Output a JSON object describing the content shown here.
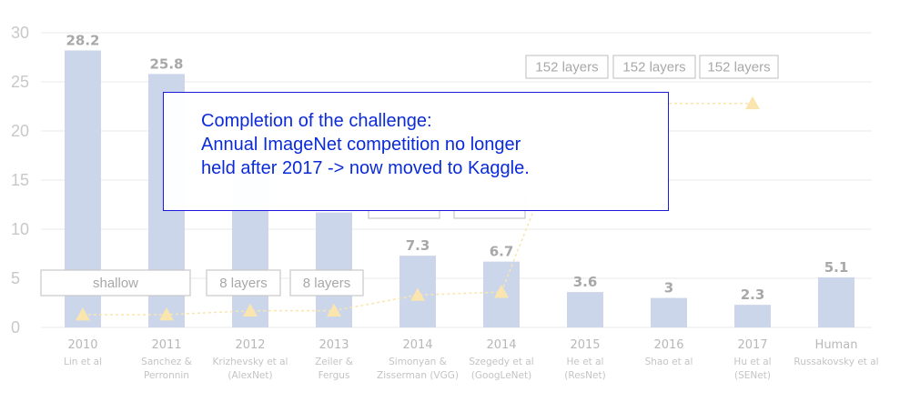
{
  "chart_data": {
    "type": "bar",
    "ylim": [
      0,
      30
    ],
    "yticks": [
      "0",
      "5",
      "10",
      "15",
      "20",
      "25",
      "30"
    ],
    "grid": true,
    "categories": [
      "2010",
      "2011",
      "2012",
      "2013",
      "2014",
      "2014",
      "2015",
      "2016",
      "2017",
      "Human"
    ],
    "authors": [
      [
        "Lin et al"
      ],
      [
        "Sanchez &",
        "Perronnin"
      ],
      [
        "Krizhevsky et al",
        "(AlexNet)"
      ],
      [
        "Zeiler &",
        "Fergus"
      ],
      [
        "Simonyan &",
        "Zisserman (VGG)"
      ],
      [
        "Szegedy et al",
        "(GoogLeNet)"
      ],
      [
        "He et al",
        "(ResNet)"
      ],
      [
        "Shao et al"
      ],
      [
        "Hu et al",
        "(SENet)"
      ],
      [
        "Russakovsky et al"
      ]
    ],
    "values": [
      28.2,
      25.8,
      16.4,
      11.7,
      7.3,
      6.7,
      3.6,
      3,
      2.3,
      5.1
    ],
    "value_labels": [
      "28.2",
      "25.8",
      "",
      "",
      "7.3",
      "6.7",
      "3.6",
      "3",
      "2.3",
      "5.1"
    ],
    "depth_labels": [
      "shallow",
      "8 layers",
      "8 layers",
      "",
      "",
      "152 layers",
      "152 layers",
      "152 layers"
    ],
    "depth_values": [
      1.3,
      1.3,
      1.7,
      1.7,
      3.3,
      3.6,
      22.8
    ]
  },
  "callout": {
    "lines": [
      "Completion of the challenge:",
      "Annual ImageNet competition no longer",
      "held after 2017 -> now moved to Kaggle."
    ]
  },
  "colors": {
    "bar": "#cbd6ea",
    "triangle": "#fae5ae",
    "callout_border": "#1a1adc",
    "callout_text": "#0b2bd8"
  }
}
